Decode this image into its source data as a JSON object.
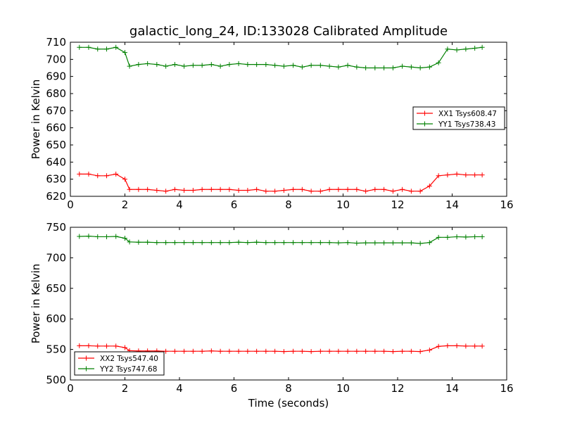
{
  "figure": {
    "title": "galactic_long_24, ID:133028 Calibrated Amplitude"
  },
  "chart_data": [
    {
      "type": "line",
      "title": "galactic_long_24, ID:133028 Calibrated Amplitude",
      "xlabel": "",
      "ylabel": "Power in Kelvin",
      "xlim": [
        0,
        16
      ],
      "ylim": [
        620,
        710
      ],
      "x_ticks": [
        0,
        2,
        4,
        6,
        8,
        10,
        12,
        14,
        16
      ],
      "y_ticks": [
        620,
        630,
        640,
        650,
        660,
        670,
        680,
        690,
        700,
        710
      ],
      "legend_position": "center-right",
      "grid": false,
      "x": [
        0.33,
        0.67,
        1.0,
        1.33,
        1.67,
        2.0,
        2.17,
        2.5,
        2.83,
        3.17,
        3.5,
        3.83,
        4.17,
        4.5,
        4.83,
        5.17,
        5.5,
        5.83,
        6.17,
        6.5,
        6.83,
        7.17,
        7.5,
        7.83,
        8.17,
        8.5,
        8.83,
        9.17,
        9.5,
        9.83,
        10.17,
        10.5,
        10.83,
        11.17,
        11.5,
        11.83,
        12.17,
        12.5,
        12.83,
        13.17,
        13.5,
        13.83,
        14.17,
        14.5,
        14.83,
        15.1
      ],
      "series": [
        {
          "name": "XX1 Tsys608.47",
          "color": "#ff0000",
          "values": [
            633,
            633,
            632,
            632,
            633,
            630,
            624,
            624,
            624,
            623.5,
            623,
            624,
            623.5,
            623.5,
            624,
            624,
            624,
            624,
            623.5,
            623.5,
            624,
            623,
            623,
            623.5,
            624,
            624,
            623,
            623,
            624,
            624,
            624,
            624,
            623,
            624,
            624,
            623,
            624,
            623,
            623,
            626,
            632,
            632.5,
            633,
            632.5,
            632.5,
            632.5
          ]
        },
        {
          "name": "YY1 Tsys738.43",
          "color": "#008000",
          "values": [
            707,
            707,
            706,
            706,
            707,
            704,
            696,
            697,
            697.5,
            697,
            696,
            697,
            696,
            696.5,
            696.5,
            697,
            696,
            697,
            697.5,
            697,
            697,
            697,
            696.5,
            696,
            696.5,
            695.5,
            696.5,
            696.5,
            696,
            695.5,
            696.5,
            695.5,
            695,
            695,
            695,
            695,
            696,
            695.5,
            695,
            695.5,
            698,
            706,
            705.5,
            706,
            706.5,
            707
          ]
        }
      ]
    },
    {
      "type": "line",
      "title": "",
      "xlabel": "Time (seconds)",
      "ylabel": "Power in Kelvin",
      "xlim": [
        0,
        16
      ],
      "ylim": [
        500,
        750
      ],
      "x_ticks": [
        0,
        2,
        4,
        6,
        8,
        10,
        12,
        14,
        16
      ],
      "y_ticks": [
        500,
        550,
        600,
        650,
        700,
        750
      ],
      "legend_position": "lower-left",
      "grid": false,
      "x": [
        0.33,
        0.67,
        1.0,
        1.33,
        1.67,
        2.0,
        2.17,
        2.5,
        2.83,
        3.17,
        3.5,
        3.83,
        4.17,
        4.5,
        4.83,
        5.17,
        5.5,
        5.83,
        6.17,
        6.5,
        6.83,
        7.17,
        7.5,
        7.83,
        8.17,
        8.5,
        8.83,
        9.17,
        9.5,
        9.83,
        10.17,
        10.5,
        10.83,
        11.17,
        11.5,
        11.83,
        12.17,
        12.5,
        12.83,
        13.17,
        13.5,
        13.83,
        14.17,
        14.5,
        14.83,
        15.1
      ],
      "series": [
        {
          "name": "XX2 Tsys547.40",
          "color": "#ff0000",
          "values": [
            556,
            556,
            555.5,
            555.5,
            555.5,
            553,
            548,
            547.5,
            547.5,
            547.5,
            547,
            547,
            547,
            547,
            547,
            547.5,
            547,
            547,
            547,
            547,
            547,
            547,
            547,
            546.5,
            547,
            547,
            546.5,
            547,
            547,
            547,
            547,
            547,
            547,
            547,
            547,
            546.5,
            547,
            547,
            546.5,
            549,
            555,
            556,
            556,
            555.5,
            555.5,
            555.5
          ]
        },
        {
          "name": "YY2 Tsys747.68",
          "color": "#008000",
          "values": [
            735,
            735.5,
            734.5,
            734.5,
            735,
            732,
            726,
            725.5,
            725.5,
            725,
            725,
            725,
            725,
            725,
            725,
            725,
            725,
            725,
            725.5,
            725,
            725.5,
            725,
            725,
            725,
            725,
            725,
            725,
            725,
            725,
            724.5,
            725,
            724,
            724.5,
            724.5,
            724.5,
            724.5,
            724.5,
            724.5,
            723.5,
            725,
            733.5,
            733.5,
            734.5,
            734,
            734.5,
            734.5
          ]
        }
      ]
    }
  ]
}
